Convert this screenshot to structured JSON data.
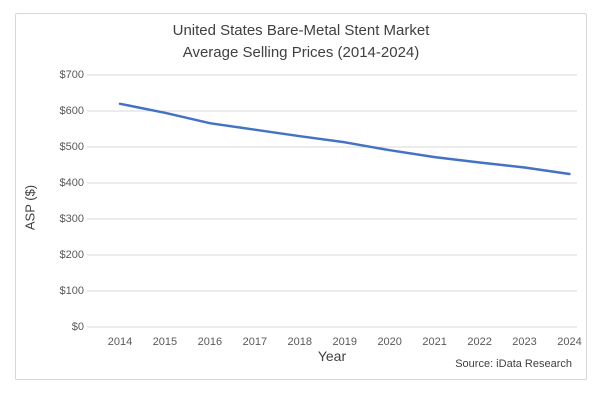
{
  "chart": {
    "title_line1": "United States Bare-Metal Stent Market",
    "title_line2": "Average Selling Prices (2014-2024)",
    "ylabel": "ASP ($)",
    "xlabel": "Year",
    "source": "Source: iData Research"
  },
  "chart_data": {
    "type": "line",
    "title": "United States Bare-Metal Stent Market Average Selling Prices (2014-2024)",
    "xlabel": "Year",
    "ylabel": "ASP ($)",
    "categories": [
      2014,
      2015,
      2016,
      2017,
      2018,
      2019,
      2020,
      2021,
      2022,
      2023,
      2024
    ],
    "series": [
      {
        "name": "ASP",
        "values": [
          620,
          595,
          566,
          548,
          530,
          513,
          491,
          472,
          457,
          443,
          425
        ]
      }
    ],
    "ylim": [
      0,
      700
    ],
    "ytick_step": 100,
    "ytick_prefix": "$",
    "grid": true,
    "legend": false,
    "line_color": "#4472C4",
    "grid_color": "#d9d9d9",
    "tick_text_color": "#595959"
  }
}
